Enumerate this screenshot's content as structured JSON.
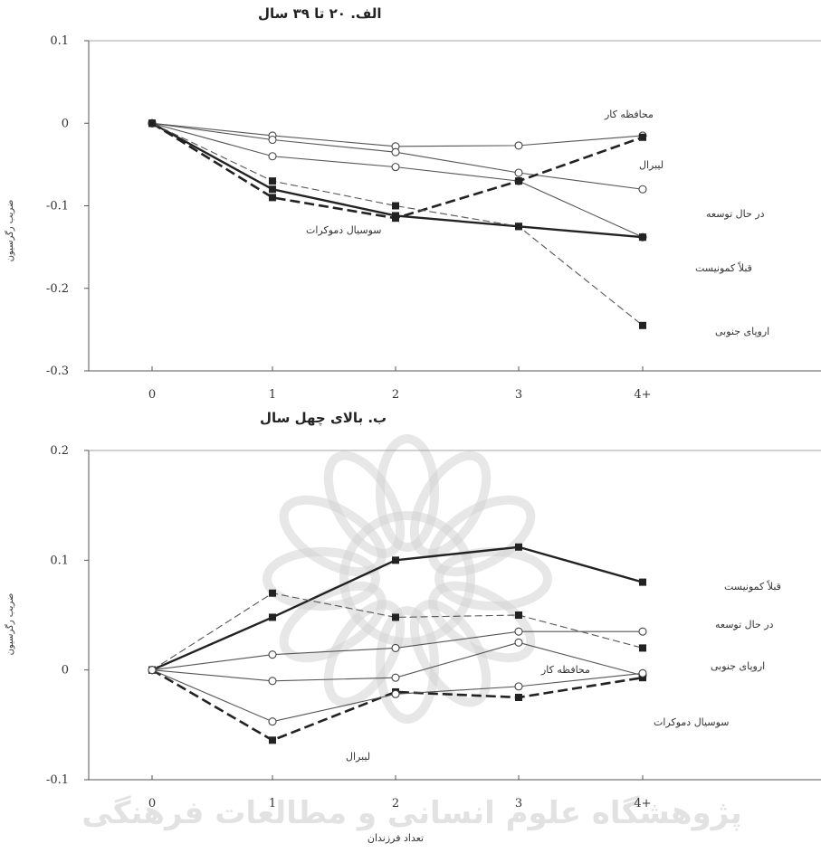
{
  "watermark": {
    "text": "پژوهشگاه علوم انسانی و مطالعات فرهنگی"
  },
  "chart_data": [
    {
      "type": "line",
      "title": "الف. ۲۰ تا ۳۹ سال",
      "ylabel": "ضریب رگرسیون",
      "xlabel": "",
      "categories": [
        "0",
        "1",
        "2",
        "3",
        "4+"
      ],
      "ylim": [
        -0.3,
        0.1
      ],
      "yticks": [
        "0.1",
        "0",
        "-0.1",
        "-0.2",
        "-0.3"
      ],
      "grid": false,
      "series": [
        {
          "name": "محافظه کار",
          "style": "thin",
          "marker": "circle",
          "values": [
            0,
            -0.015,
            -0.028,
            -0.027,
            -0.015
          ]
        },
        {
          "name": "لیبرال",
          "style": "thin",
          "marker": "circle",
          "values": [
            0,
            -0.02,
            -0.035,
            -0.06,
            -0.08
          ]
        },
        {
          "name": "در حال توسعه",
          "style": "thin",
          "marker": "circle",
          "values": [
            0,
            -0.04,
            -0.053,
            -0.07,
            -0.138
          ]
        },
        {
          "name": "قبلاً کمونیست",
          "style": "bold",
          "marker": "square",
          "values": [
            0,
            -0.08,
            -0.112,
            -0.125,
            -0.138
          ]
        },
        {
          "name": "سوسیال دموکرات",
          "style": "dashed-bold",
          "marker": "square",
          "values": [
            0,
            -0.09,
            -0.115,
            -0.07,
            -0.017
          ]
        },
        {
          "name": "اروپای جنوبی",
          "style": "dashed-thin",
          "marker": "square",
          "values": [
            0,
            -0.07,
            -0.1,
            -0.125,
            -0.245
          ]
        }
      ],
      "labels": [
        {
          "text": "محافظه کار"
        },
        {
          "text": "لیبرال"
        },
        {
          "text": "در حال توسعه"
        },
        {
          "text": "سوسیال دموکرات"
        },
        {
          "text": "قبلاً کمونیست"
        },
        {
          "text": "اروپای جنوبی"
        }
      ]
    },
    {
      "type": "line",
      "title": "ب. بالای چهل سال",
      "ylabel": "ضریب رگرسیون",
      "xlabel": "تعداد فرزندان",
      "categories": [
        "0",
        "1",
        "2",
        "3",
        "4+"
      ],
      "ylim": [
        -0.1,
        0.2
      ],
      "yticks": [
        "0.2",
        "0.1",
        "0",
        "-0.1"
      ],
      "grid": false,
      "series": [
        {
          "name": "قبلاً کمونیست",
          "style": "bold",
          "marker": "square",
          "values": [
            0,
            0.048,
            0.1,
            0.112,
            0.08
          ]
        },
        {
          "name": "اروپای جنوبی",
          "style": "dashed-thin",
          "marker": "square",
          "values": [
            0,
            0.07,
            0.048,
            0.05,
            0.02
          ]
        },
        {
          "name": "در حال توسعه",
          "style": "thin",
          "marker": "circle",
          "values": [
            0,
            0.014,
            0.02,
            0.035,
            0.035
          ]
        },
        {
          "name": "محافظه کار",
          "style": "thin",
          "marker": "circle",
          "values": [
            0,
            -0.01,
            -0.007,
            0.025,
            -0.005
          ]
        },
        {
          "name": "سوسیال دموکرات",
          "style": "dashed-bold",
          "marker": "square",
          "values": [
            0,
            -0.064,
            -0.02,
            -0.025,
            -0.007
          ]
        },
        {
          "name": "لیبرال",
          "style": "thin",
          "marker": "circle",
          "values": [
            0,
            -0.047,
            -0.022,
            -0.015,
            -0.003
          ]
        }
      ],
      "labels": [
        {
          "text": "قبلاً کمونیست"
        },
        {
          "text": "در حال توسعه"
        },
        {
          "text": "اروپای جنوبی"
        },
        {
          "text": "محافظه کار"
        },
        {
          "text": "سوسیال دموکرات"
        },
        {
          "text": "لیبرال"
        }
      ]
    }
  ]
}
